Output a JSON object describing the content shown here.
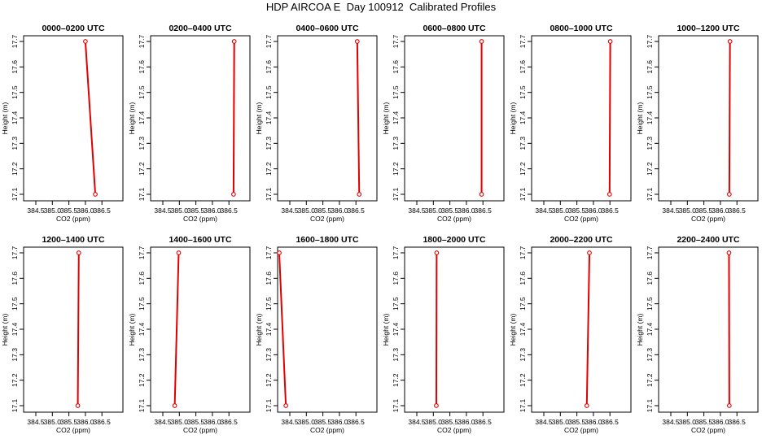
{
  "title": "HDP AIRCOA E  Day 100912  Calibrated Profiles",
  "chart_data": [
    {
      "type": "line",
      "title": "0000–0200 UTC",
      "xlabel": "CO2 (ppm)",
      "ylabel": "Height (m)",
      "xlim": [
        384.1,
        386.7
      ],
      "ylim": [
        17.08,
        17.72
      ],
      "xticks": [
        "384.5",
        "385.0",
        "385.5",
        "386.0",
        "386.5"
      ],
      "yticks": [
        "17.1",
        "17.2",
        "17.3",
        "17.4",
        "17.5",
        "17.6",
        "17.7"
      ],
      "points": [
        {
          "x": 386.0,
          "y": 17.7
        },
        {
          "x": 386.3,
          "y": 17.1
        }
      ],
      "series_color": "#e00000"
    },
    {
      "type": "line",
      "title": "0200–0400 UTC",
      "xlabel": "CO2 (ppm)",
      "ylabel": "Height (m)",
      "xlim": [
        384.1,
        386.7
      ],
      "ylim": [
        17.08,
        17.72
      ],
      "xticks": [
        "384.5",
        "385.0",
        "385.5",
        "386.0",
        "386.5"
      ],
      "yticks": [
        "17.1",
        "17.2",
        "17.3",
        "17.4",
        "17.5",
        "17.6",
        "17.7"
      ],
      "points": [
        {
          "x": 386.66,
          "y": 17.7
        },
        {
          "x": 386.64,
          "y": 17.1
        }
      ],
      "series_color": "#e00000"
    },
    {
      "type": "line",
      "title": "0400–0600 UTC",
      "xlabel": "CO2 (ppm)",
      "ylabel": "Height (m)",
      "xlim": [
        384.1,
        386.7
      ],
      "ylim": [
        17.08,
        17.72
      ],
      "xticks": [
        "384.5",
        "385.0",
        "385.5",
        "386.0",
        "386.5"
      ],
      "yticks": [
        "17.1",
        "17.2",
        "17.3",
        "17.4",
        "17.5",
        "17.6",
        "17.7"
      ],
      "points": [
        {
          "x": 386.54,
          "y": 17.7
        },
        {
          "x": 386.6,
          "y": 17.1
        }
      ],
      "series_color": "#e00000"
    },
    {
      "type": "line",
      "title": "0600–0800 UTC",
      "xlabel": "CO2 (ppm)",
      "ylabel": "Height (m)",
      "xlim": [
        384.1,
        386.7
      ],
      "ylim": [
        17.08,
        17.72
      ],
      "xticks": [
        "384.5",
        "385.0",
        "385.5",
        "386.0",
        "386.5"
      ],
      "yticks": [
        "17.1",
        "17.2",
        "17.3",
        "17.4",
        "17.5",
        "17.6",
        "17.7"
      ],
      "points": [
        {
          "x": 386.46,
          "y": 17.7
        },
        {
          "x": 386.46,
          "y": 17.1
        }
      ],
      "series_color": "#e00000"
    },
    {
      "type": "line",
      "title": "0800–1000 UTC",
      "xlabel": "CO2 (ppm)",
      "ylabel": "Height (m)",
      "xlim": [
        384.1,
        386.7
      ],
      "ylim": [
        17.08,
        17.72
      ],
      "xticks": [
        "384.5",
        "385.0",
        "385.5",
        "386.0",
        "386.5"
      ],
      "yticks": [
        "17.1",
        "17.2",
        "17.3",
        "17.4",
        "17.5",
        "17.6",
        "17.7"
      ],
      "points": [
        {
          "x": 386.51,
          "y": 17.7
        },
        {
          "x": 386.49,
          "y": 17.1
        }
      ],
      "series_color": "#e00000"
    },
    {
      "type": "line",
      "title": "1000–1200 UTC",
      "xlabel": "CO2 (ppm)",
      "ylabel": "Height (m)",
      "xlim": [
        384.1,
        386.7
      ],
      "ylim": [
        17.08,
        17.72
      ],
      "xticks": [
        "384.5",
        "385.0",
        "385.5",
        "386.0",
        "386.5"
      ],
      "yticks": [
        "17.1",
        "17.2",
        "17.3",
        "17.4",
        "17.5",
        "17.6",
        "17.7"
      ],
      "points": [
        {
          "x": 386.29,
          "y": 17.7
        },
        {
          "x": 386.27,
          "y": 17.1
        }
      ],
      "series_color": "#e00000"
    },
    {
      "type": "line",
      "title": "1200–1400 UTC",
      "xlabel": "CO2 (ppm)",
      "ylabel": "Height (m)",
      "xlim": [
        384.1,
        386.7
      ],
      "ylim": [
        17.08,
        17.72
      ],
      "xticks": [
        "384.5",
        "385.0",
        "385.5",
        "386.0",
        "386.5"
      ],
      "yticks": [
        "17.1",
        "17.2",
        "17.3",
        "17.4",
        "17.5",
        "17.6",
        "17.7"
      ],
      "points": [
        {
          "x": 385.8,
          "y": 17.7
        },
        {
          "x": 385.77,
          "y": 17.1
        }
      ],
      "series_color": "#e00000"
    },
    {
      "type": "line",
      "title": "1400–1600 UTC",
      "xlabel": "CO2 (ppm)",
      "ylabel": "Height (m)",
      "xlim": [
        384.1,
        386.7
      ],
      "ylim": [
        17.08,
        17.72
      ],
      "xticks": [
        "384.5",
        "385.0",
        "385.5",
        "386.0",
        "386.5"
      ],
      "yticks": [
        "17.1",
        "17.2",
        "17.3",
        "17.4",
        "17.5",
        "17.6",
        "17.7"
      ],
      "points": [
        {
          "x": 384.98,
          "y": 17.7
        },
        {
          "x": 384.86,
          "y": 17.1
        }
      ],
      "series_color": "#e00000"
    },
    {
      "type": "line",
      "title": "1600–1800 UTC",
      "xlabel": "CO2 (ppm)",
      "ylabel": "Height (m)",
      "xlim": [
        384.1,
        386.7
      ],
      "ylim": [
        17.08,
        17.72
      ],
      "xticks": [
        "384.5",
        "385.0",
        "385.5",
        "386.0",
        "386.5"
      ],
      "yticks": [
        "17.1",
        "17.2",
        "17.3",
        "17.4",
        "17.5",
        "17.6",
        "17.7"
      ],
      "points": [
        {
          "x": 384.18,
          "y": 17.7
        },
        {
          "x": 384.38,
          "y": 17.1
        }
      ],
      "series_color": "#e00000"
    },
    {
      "type": "line",
      "title": "1800–2000 UTC",
      "xlabel": "CO2 (ppm)",
      "ylabel": "Height (m)",
      "xlim": [
        384.1,
        386.7
      ],
      "ylim": [
        17.08,
        17.72
      ],
      "xticks": [
        "384.5",
        "385.0",
        "385.5",
        "386.0",
        "386.5"
      ],
      "yticks": [
        "17.1",
        "17.2",
        "17.3",
        "17.4",
        "17.5",
        "17.6",
        "17.7"
      ],
      "points": [
        {
          "x": 385.1,
          "y": 17.7
        },
        {
          "x": 385.09,
          "y": 17.1
        }
      ],
      "series_color": "#e00000"
    },
    {
      "type": "line",
      "title": "2000–2200 UTC",
      "xlabel": "CO2 (ppm)",
      "ylabel": "Height (m)",
      "xlim": [
        384.1,
        386.7
      ],
      "ylim": [
        17.08,
        17.72
      ],
      "xticks": [
        "384.5",
        "385.0",
        "385.5",
        "386.0",
        "386.5"
      ],
      "yticks": [
        "17.1",
        "17.2",
        "17.3",
        "17.4",
        "17.5",
        "17.6",
        "17.7"
      ],
      "points": [
        {
          "x": 385.88,
          "y": 17.7
        },
        {
          "x": 385.8,
          "y": 17.1
        }
      ],
      "series_color": "#e00000"
    },
    {
      "type": "line",
      "title": "2200–2400 UTC",
      "xlabel": "CO2 (ppm)",
      "ylabel": "Height (m)",
      "xlim": [
        384.1,
        386.7
      ],
      "ylim": [
        17.08,
        17.72
      ],
      "xticks": [
        "384.5",
        "385.0",
        "385.5",
        "386.0",
        "386.5"
      ],
      "yticks": [
        "17.1",
        "17.2",
        "17.3",
        "17.4",
        "17.5",
        "17.6",
        "17.7"
      ],
      "points": [
        {
          "x": 386.26,
          "y": 17.7
        },
        {
          "x": 386.27,
          "y": 17.1
        }
      ],
      "series_color": "#e00000"
    }
  ]
}
